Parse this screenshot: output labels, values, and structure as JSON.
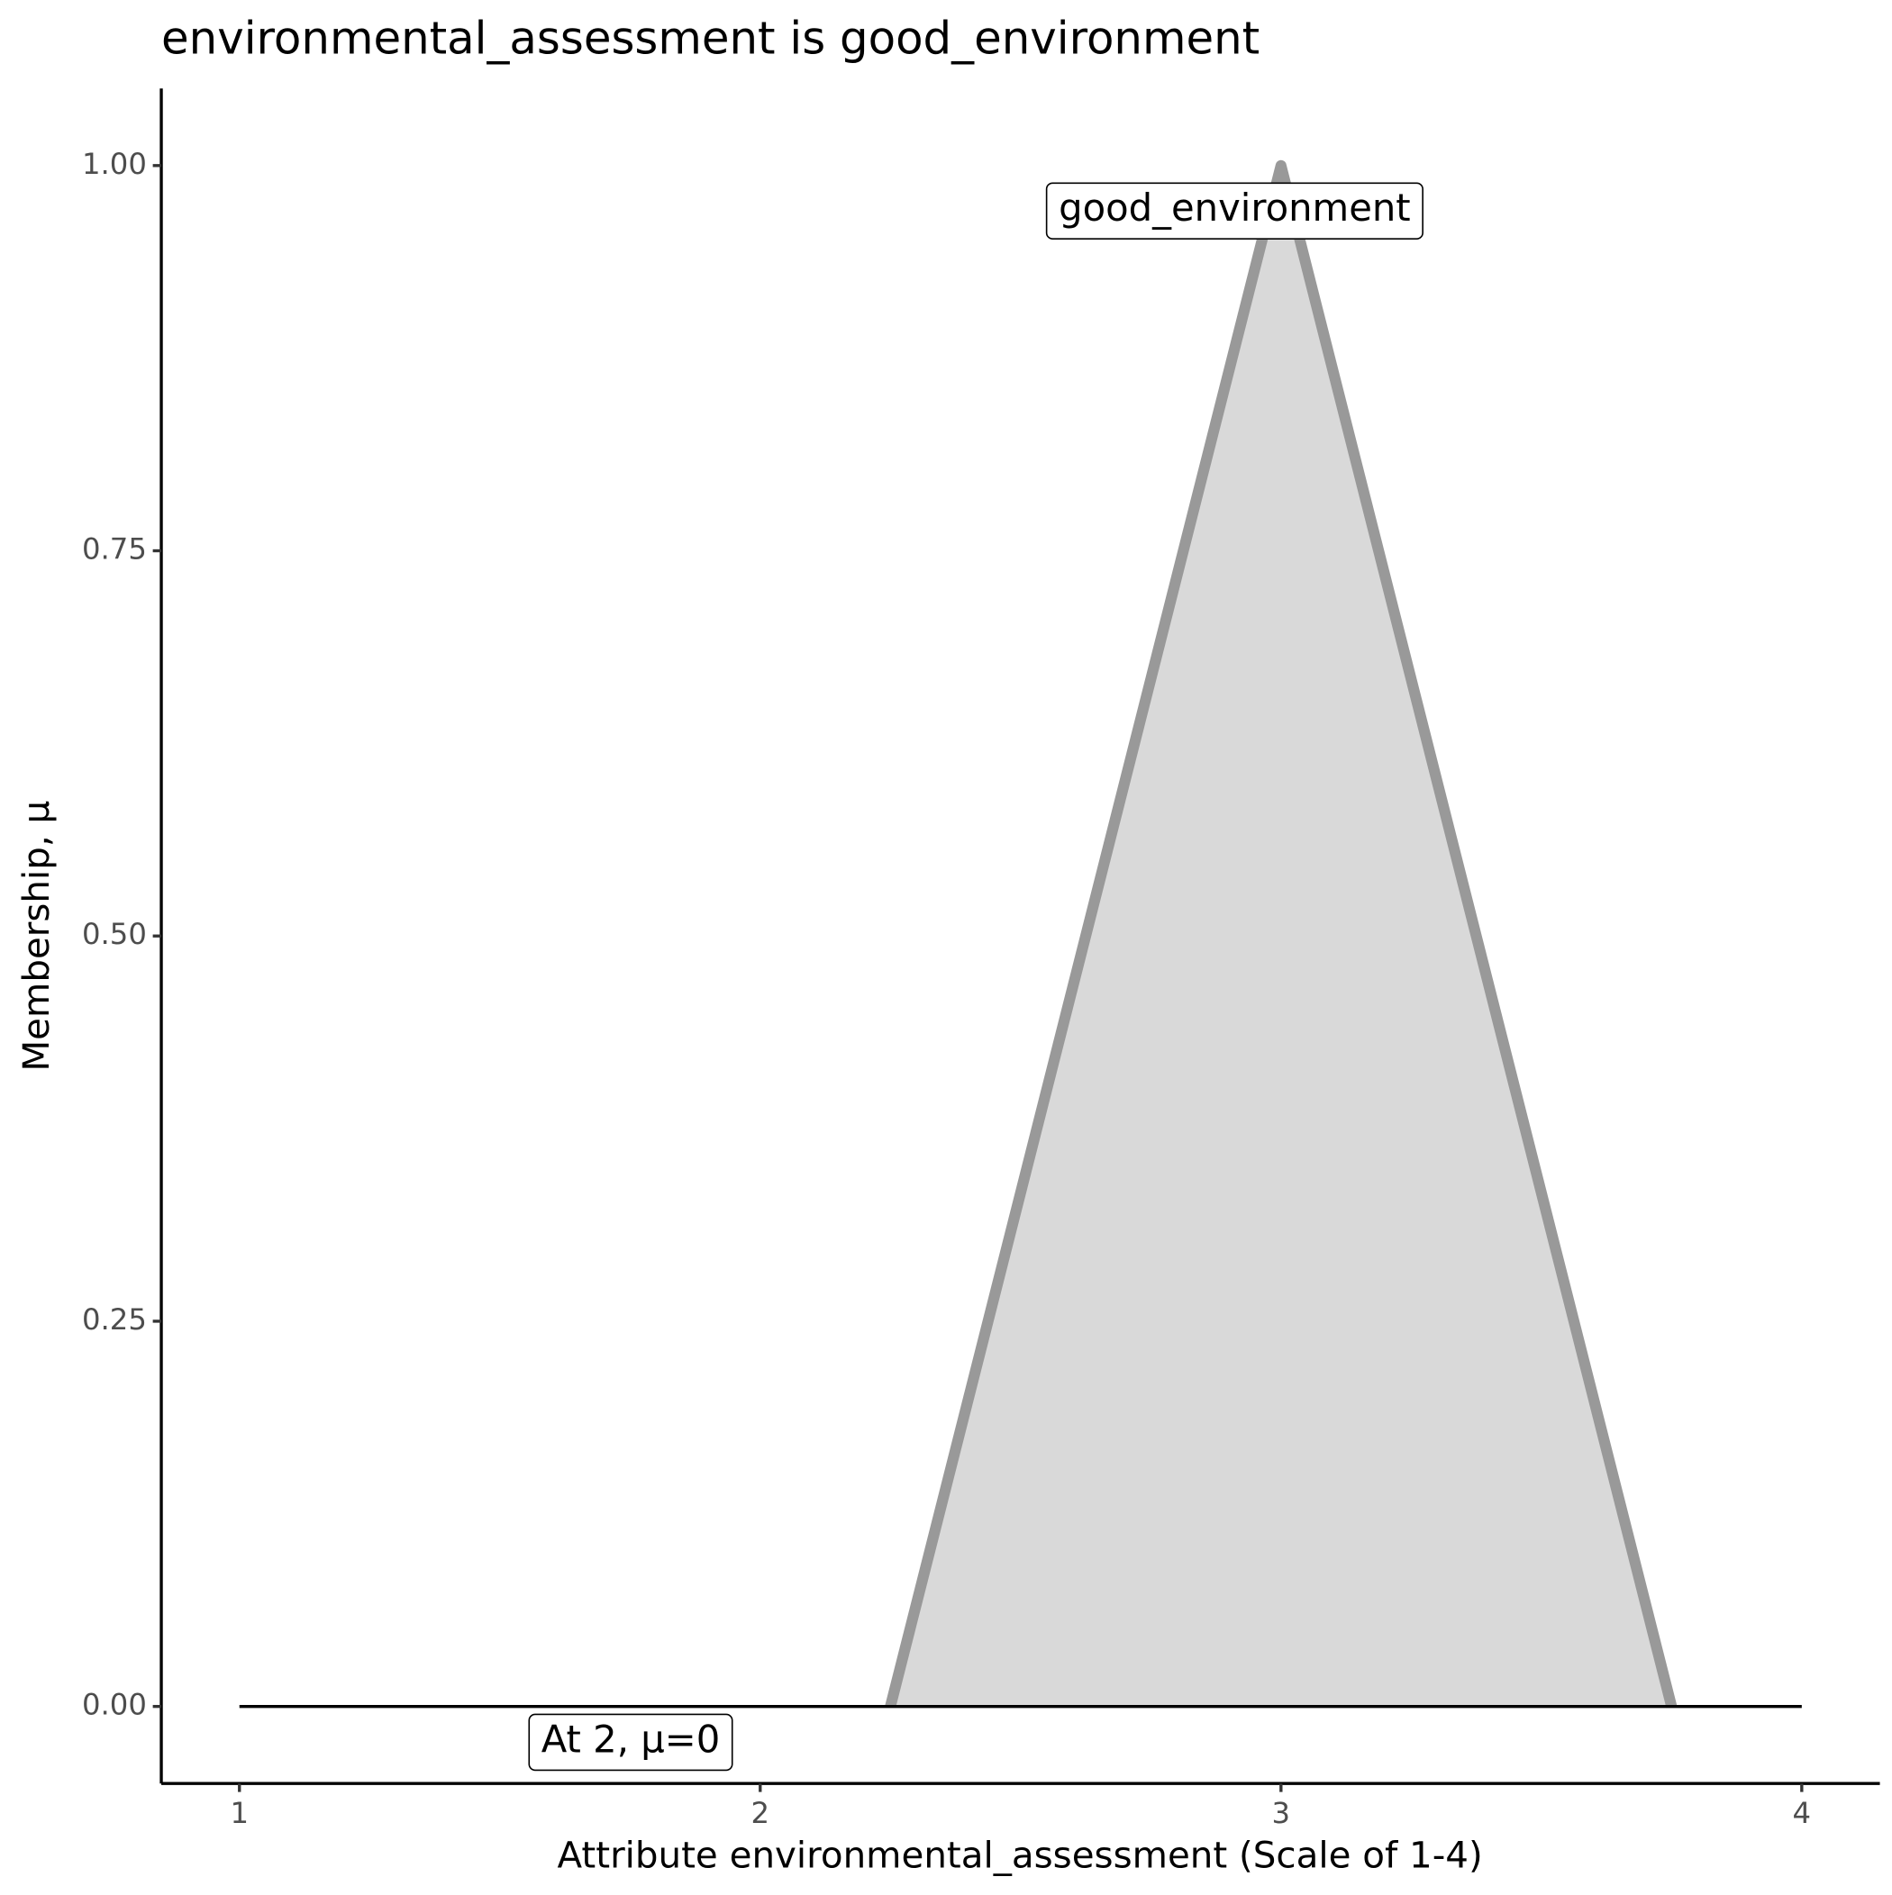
{
  "chart_data": {
    "type": "area",
    "title": "environmental_assessment is good_environment",
    "xlabel": "Attribute environmental_assessment (Scale of 1-4)",
    "ylabel": "Membership, μ",
    "x": [
      2.25,
      3,
      3.75
    ],
    "series": [
      {
        "name": "good_environment",
        "color": "#999999",
        "fill": "#d9d9d9",
        "values": [
          0,
          1,
          0
        ]
      }
    ],
    "reference_line": {
      "x": [
        1,
        4
      ],
      "values": [
        0,
        0
      ],
      "color": "#000000"
    },
    "annotations": [
      "At 2, μ=0"
    ],
    "xlim": [
      0.85,
      4.15
    ],
    "ylim": [
      -0.05,
      1.05
    ],
    "xticks": [
      1,
      2,
      3,
      4
    ],
    "yticks": [
      {
        "value": 0,
        "label": "0.00"
      },
      {
        "value": 0.25,
        "label": "0.25"
      },
      {
        "value": 0.5,
        "label": "0.50"
      },
      {
        "value": 0.75,
        "label": "0.75"
      },
      {
        "value": 1,
        "label": "1.00"
      }
    ],
    "grid": false
  }
}
